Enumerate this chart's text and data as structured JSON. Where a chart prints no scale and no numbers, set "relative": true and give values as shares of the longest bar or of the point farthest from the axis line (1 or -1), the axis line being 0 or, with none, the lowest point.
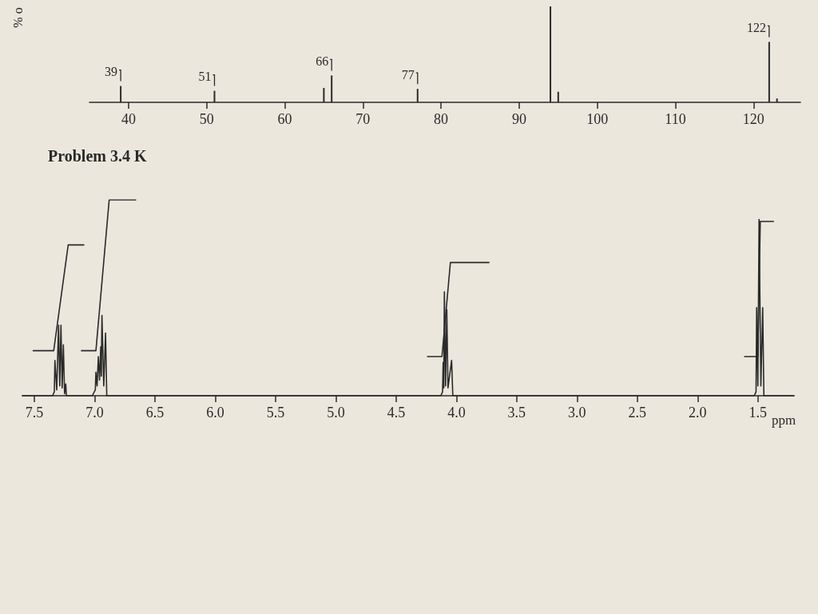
{
  "chart_data": [
    {
      "type": "bar",
      "ylabel": "% o",
      "relative": true,
      "color": "#2a2a2a",
      "x": [
        39,
        51,
        65,
        66,
        77,
        94,
        95,
        122,
        123
      ],
      "values": [
        0.17,
        0.12,
        0.15,
        0.28,
        0.14,
        1,
        0.11,
        0.63,
        0.04
      ],
      "xlim": [
        35,
        126
      ],
      "xticks": [
        40,
        50,
        60,
        70,
        80,
        90,
        100,
        110,
        120
      ],
      "annotations": [
        {
          "text": "39",
          "x": 39,
          "y": 0.17
        },
        {
          "text": "51",
          "x": 51,
          "y": 0.12
        },
        {
          "text": "66",
          "x": 66,
          "y": 0.28
        },
        {
          "text": "77",
          "x": 77,
          "y": 0.14
        },
        {
          "text": "122",
          "x": 122,
          "y": 0.63
        }
      ]
    },
    {
      "type": "line",
      "title": "Problem 3.4 K",
      "xlabel": "ppm",
      "relative": true,
      "marker": "none",
      "line_style": "solid",
      "xlim": [
        7.6,
        1.2
      ],
      "xticks": [
        7.5,
        {
          "value": 7,
          "label": "7.0"
        },
        6.5,
        {
          "value": 6,
          "label": "6.0"
        },
        5.5,
        {
          "value": 5,
          "label": "5.0"
        },
        4.5,
        {
          "value": 4,
          "label": "4.0"
        },
        3.5,
        {
          "value": 3,
          "label": "3.0"
        },
        2.5,
        {
          "value": 2,
          "label": "2.0"
        },
        1.5
      ],
      "series": [
        {
          "color": "#2a2a2a",
          "x": [
            7.6,
            7.35,
            7.335,
            7.33,
            7.315,
            7.3,
            7.29,
            7.28,
            7.27,
            7.26,
            7.25,
            7.24,
            7.235,
            7.02,
            6.995,
            6.99,
            6.98,
            6.97,
            6.96,
            6.95,
            6.945,
            6.94,
            6.925,
            6.91,
            6.9,
            4.13,
            4.115,
            4.11,
            4.105,
            4.1,
            4.09,
            4.08,
            4.07,
            4.04,
            4.03,
            1.53,
            1.515,
            1.51,
            1.5,
            1.49,
            1.475,
            1.46,
            1.45,
            1.2
          ],
          "values": [
            0,
            0,
            0.02,
            0.18,
            0.03,
            0.36,
            0.05,
            0.36,
            0.04,
            0.26,
            0.01,
            0.06,
            0,
            0,
            0.03,
            0.12,
            0.05,
            0.2,
            0.08,
            0.25,
            0.1,
            0.41,
            0.05,
            0.32,
            0,
            0,
            0.02,
            0.17,
            0.04,
            0.53,
            0.05,
            0.44,
            0.04,
            0.18,
            0,
            0,
            0.02,
            0.45,
            0.05,
            0.9,
            0.05,
            0.45,
            0,
            0
          ]
        },
        {
          "color": "#2a2a2a",
          "x": [
            7.51,
            7.34,
            7.22,
            7.09
          ],
          "values": [
            0.23,
            0.23,
            0.77,
            0.77
          ]
        },
        {
          "color": "#2a2a2a",
          "x": [
            7.11,
            6.99,
            6.88,
            6.66
          ],
          "values": [
            0.23,
            0.23,
            1,
            1
          ]
        },
        {
          "color": "#2a2a2a",
          "x": [
            4.24,
            4.12,
            4.05,
            3.73
          ],
          "values": [
            0.2,
            0.2,
            0.68,
            0.68
          ]
        },
        {
          "color": "#2a2a2a",
          "x": [
            1.61,
            1.5,
            1.48,
            1.37
          ],
          "values": [
            0.2,
            0.2,
            0.89,
            0.89
          ]
        }
      ]
    }
  ]
}
